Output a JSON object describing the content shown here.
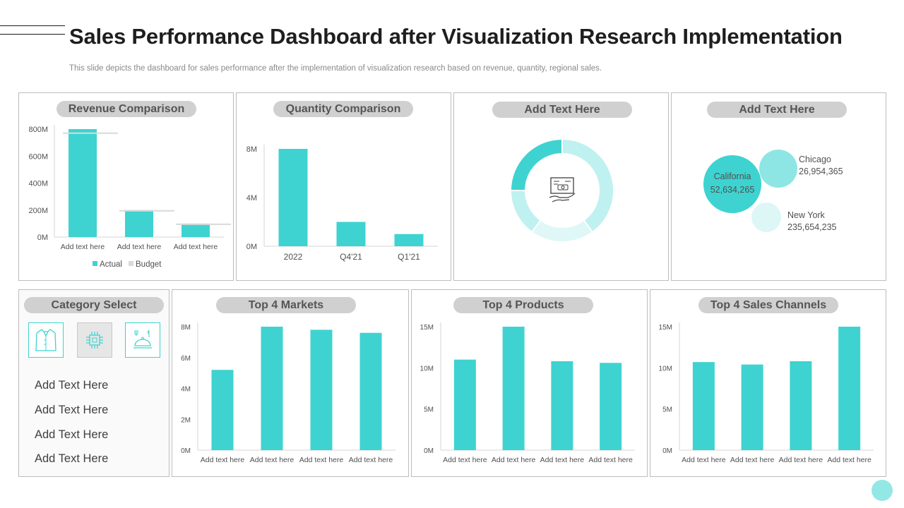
{
  "header": {
    "title": "Sales Performance Dashboard after Visualization Research Implementation",
    "subtitle": "This slide depicts the dashboard for sales performance after the implementation of visualization research based on revenue, quantity, regional sales."
  },
  "colors": {
    "accent": "#3ed3d0",
    "accent_light": "#bff1f0",
    "budget": "#d9d9d9",
    "pill": "#d0d0d0"
  },
  "panels": {
    "donut": {
      "title": "Add Text Here",
      "icon": "presentation-money-icon"
    },
    "regions": {
      "title": "Add Text Here"
    },
    "category": {
      "title": "Category Select",
      "icons": [
        "shirt-icon",
        "chip-icon",
        "food-icon"
      ],
      "items": [
        "Add Text Here",
        "Add Text Here",
        "Add Text Here",
        "Add Text Here"
      ]
    }
  },
  "chart_data": [
    {
      "id": "revenue",
      "type": "bar",
      "title": "Revenue Comparison",
      "categories": [
        "Add text here",
        "Add text here",
        "Add text here"
      ],
      "series": [
        {
          "name": "Actual",
          "values": [
            800,
            200,
            100
          ]
        },
        {
          "name": "Budget",
          "values": [
            770,
            195,
            95
          ]
        }
      ],
      "ylim": [
        0,
        800
      ],
      "yticks": [
        "0M",
        "200M",
        "400M",
        "600M",
        "800M"
      ],
      "legend": [
        "Actual",
        "Budget"
      ]
    },
    {
      "id": "quantity",
      "type": "bar",
      "title": "Quantity Comparison",
      "categories": [
        "2022",
        "Q4'21",
        "Q1'21"
      ],
      "values": [
        8,
        2,
        1
      ],
      "ylim": [
        0,
        8
      ],
      "yticks": [
        "0M",
        "4M",
        "8M"
      ]
    },
    {
      "id": "donut",
      "type": "pie",
      "values": [
        40,
        20,
        15,
        25
      ],
      "colors": [
        "#bff1f0",
        "#dff7f7",
        "#bff1f0",
        "#3ed3d0"
      ]
    },
    {
      "id": "regions",
      "type": "scatter",
      "points": [
        {
          "name": "California",
          "label": "52,634,265",
          "value": 52634265
        },
        {
          "name": "Chicago",
          "label": "26,954,365",
          "value": 26954365
        },
        {
          "name": "New York",
          "label": "235,654,235",
          "value": 235654235
        }
      ]
    },
    {
      "id": "markets",
      "type": "bar",
      "title": "Top 4 Markets",
      "categories": [
        "Add text here",
        "Add text here",
        "Add text here",
        "Add text here"
      ],
      "values": [
        5.2,
        8,
        7.8,
        7.6
      ],
      "ylim": [
        0,
        8
      ],
      "yticks": [
        "0M",
        "2M",
        "4M",
        "6M",
        "8M"
      ]
    },
    {
      "id": "products",
      "type": "bar",
      "title": "Top 4 Products",
      "categories": [
        "Add text here",
        "Add text here",
        "Add text here",
        "Add text here"
      ],
      "values": [
        11,
        15,
        10.8,
        10.6
      ],
      "ylim": [
        0,
        15
      ],
      "yticks": [
        "0M",
        "5M",
        "10M",
        "15M"
      ]
    },
    {
      "id": "channels",
      "type": "bar",
      "title": "Top 4 Sales Channels",
      "categories": [
        "Add text here",
        "Add text here",
        "Add text here",
        "Add text here"
      ],
      "values": [
        10.7,
        10.4,
        10.8,
        15
      ],
      "ylim": [
        0,
        15
      ],
      "yticks": [
        "0M",
        "5M",
        "10M",
        "15M"
      ]
    }
  ]
}
